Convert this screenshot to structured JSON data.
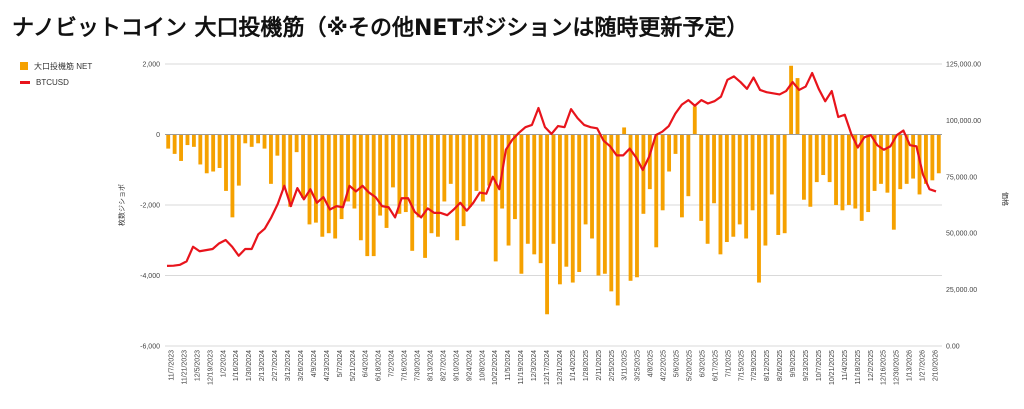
{
  "title": "ナノビットコイン 大口投機筋（※その他NETポジションは随時更新予定）",
  "legend": [
    {
      "name": "大口投機筋 NET",
      "color": "#f5a100",
      "kind": "bar"
    },
    {
      "name": "BTCUSD",
      "color": "#e8141c",
      "kind": "line"
    }
  ],
  "chart_data": {
    "type": "bar+line",
    "left_axis": {
      "label": "枚数ジショポ",
      "min": -6000,
      "max": 2000,
      "ticks": [
        2000,
        0,
        -2000,
        -4000,
        -6000
      ],
      "tick_labels": [
        "2,000",
        "0",
        "-2,000",
        "-4,000",
        "-6,000"
      ]
    },
    "right_axis": {
      "label": "価格",
      "min": 0,
      "max": 125000,
      "ticks": [
        125000,
        100000,
        75000,
        50000,
        25000,
        0
      ],
      "tick_labels": [
        "125,000.00",
        "100,000.00",
        "75,000.00",
        "50,000.00",
        "25,000.00",
        "0.00"
      ]
    },
    "x_tick_labels": [
      "11/7/2023",
      "11/21/2023",
      "12/5/2023",
      "12/19/2023",
      "1/2/2024",
      "1/16/2024",
      "1/30/2024",
      "2/13/2024",
      "2/27/2024",
      "3/12/2024",
      "3/26/2024",
      "4/9/2024",
      "4/23/2024",
      "5/7/2024",
      "5/21/2024",
      "6/4/2024",
      "6/18/2024",
      "7/2/2024",
      "7/16/2024",
      "7/30/2024",
      "8/13/2024",
      "8/27/2024",
      "9/10/2024",
      "9/24/2024",
      "10/8/2024",
      "10/22/2024",
      "11/5/2024",
      "11/19/2024",
      "12/3/2024",
      "12/17/2024",
      "12/31/2024",
      "1/14/2025",
      "1/28/2025",
      "2/11/2025",
      "2/25/2025",
      "3/11/2025",
      "3/25/2025",
      "4/8/2025",
      "4/22/2025",
      "5/6/2025",
      "5/20/2025",
      "6/3/2025",
      "6/17/2025",
      "7/1/2025",
      "7/15/2025",
      "7/29/2025",
      "8/12/2025",
      "8/26/2025",
      "9/9/2025",
      "9/23/2025",
      "10/7/2025",
      "10/21/2025",
      "11/4/2025",
      "11/18/2025",
      "12/2/2025",
      "12/16/2025",
      "12/30/2025",
      "1/13/2026",
      "1/27/2026",
      "2/10/2026"
    ],
    "series": [
      {
        "name": "大口投機筋 NET",
        "type": "bar",
        "axis": "left",
        "values": [
          -400,
          -550,
          -750,
          -300,
          -350,
          -850,
          -1100,
          -1050,
          -950,
          -1600,
          -2350,
          -1450,
          -250,
          -350,
          -250,
          -400,
          -1400,
          -600,
          -1550,
          -2050,
          -500,
          -1800,
          -2550,
          -2500,
          -2900,
          -2800,
          -2950,
          -2400,
          -1900,
          -2100,
          -3000,
          -3450,
          -3450,
          -2300,
          -2650,
          -1500,
          -2250,
          -2200,
          -3300,
          -2350,
          -3500,
          -2800,
          -2900,
          -1900,
          -1400,
          -3000,
          -2600,
          -2050,
          -1600,
          -1900,
          -1450,
          -3600,
          -2100,
          -3150,
          -2400,
          -3950,
          -3100,
          -3400,
          -3650,
          -5100,
          -3100,
          -4250,
          -3750,
          -4200,
          -3900,
          -2550,
          -2950,
          -4000,
          -3950,
          -4450,
          -4850,
          200,
          -4150,
          -4050,
          -2250,
          -1550,
          -3200,
          -2150,
          -1050,
          -550,
          -2350,
          -1750,
          800,
          -2450,
          -3100,
          -1950,
          -3400,
          -3050,
          -2900,
          -2550,
          -2950,
          -2150,
          -4200,
          -3150,
          -1700,
          -2850,
          -2800,
          1950,
          1600,
          -1850,
          -2050,
          -1350,
          -1150,
          -1350,
          -2000,
          -2150,
          -2000,
          -2100,
          -2450,
          -2200,
          -1600,
          -1400,
          -1650,
          -2700,
          -1550,
          -1400,
          -1250,
          -1700,
          -1400,
          -1300,
          -1100
        ]
      },
      {
        "name": "BTCUSD",
        "type": "line",
        "axis": "right",
        "values": [
          35500,
          35600,
          36000,
          37500,
          44000,
          42000,
          42500,
          43000,
          45500,
          47000,
          44000,
          40000,
          43000,
          43000,
          49500,
          52000,
          57000,
          63000,
          71000,
          62000,
          70000,
          65000,
          69500,
          63500,
          66000,
          60500,
          62000,
          61500,
          71000,
          68500,
          71000,
          68000,
          66000,
          62000,
          61500,
          57000,
          65500,
          65500,
          59500,
          57000,
          61000,
          59000,
          59000,
          58000,
          60500,
          63500,
          60000,
          63500,
          68000,
          67500,
          75000,
          69500,
          87000,
          91500,
          94500,
          97000,
          98000,
          105500,
          97000,
          94000,
          97500,
          97000,
          105000,
          101000,
          98000,
          97000,
          96500,
          91000,
          88500,
          84500,
          84500,
          87500,
          83500,
          78000,
          84000,
          93500,
          95000,
          97500,
          103000,
          107000,
          109000,
          106500,
          109000,
          107500,
          108500,
          110500,
          118000,
          119500,
          117000,
          114000,
          119000,
          113500,
          112500,
          112000,
          111500,
          113000,
          117000,
          113500,
          115000,
          121000,
          114000,
          108500,
          113000,
          101500,
          102500,
          94000,
          88000,
          92500,
          93500,
          89000,
          87000,
          88500,
          93500,
          95500,
          89000,
          88500,
          76000,
          69500,
          68500
        ]
      }
    ]
  }
}
